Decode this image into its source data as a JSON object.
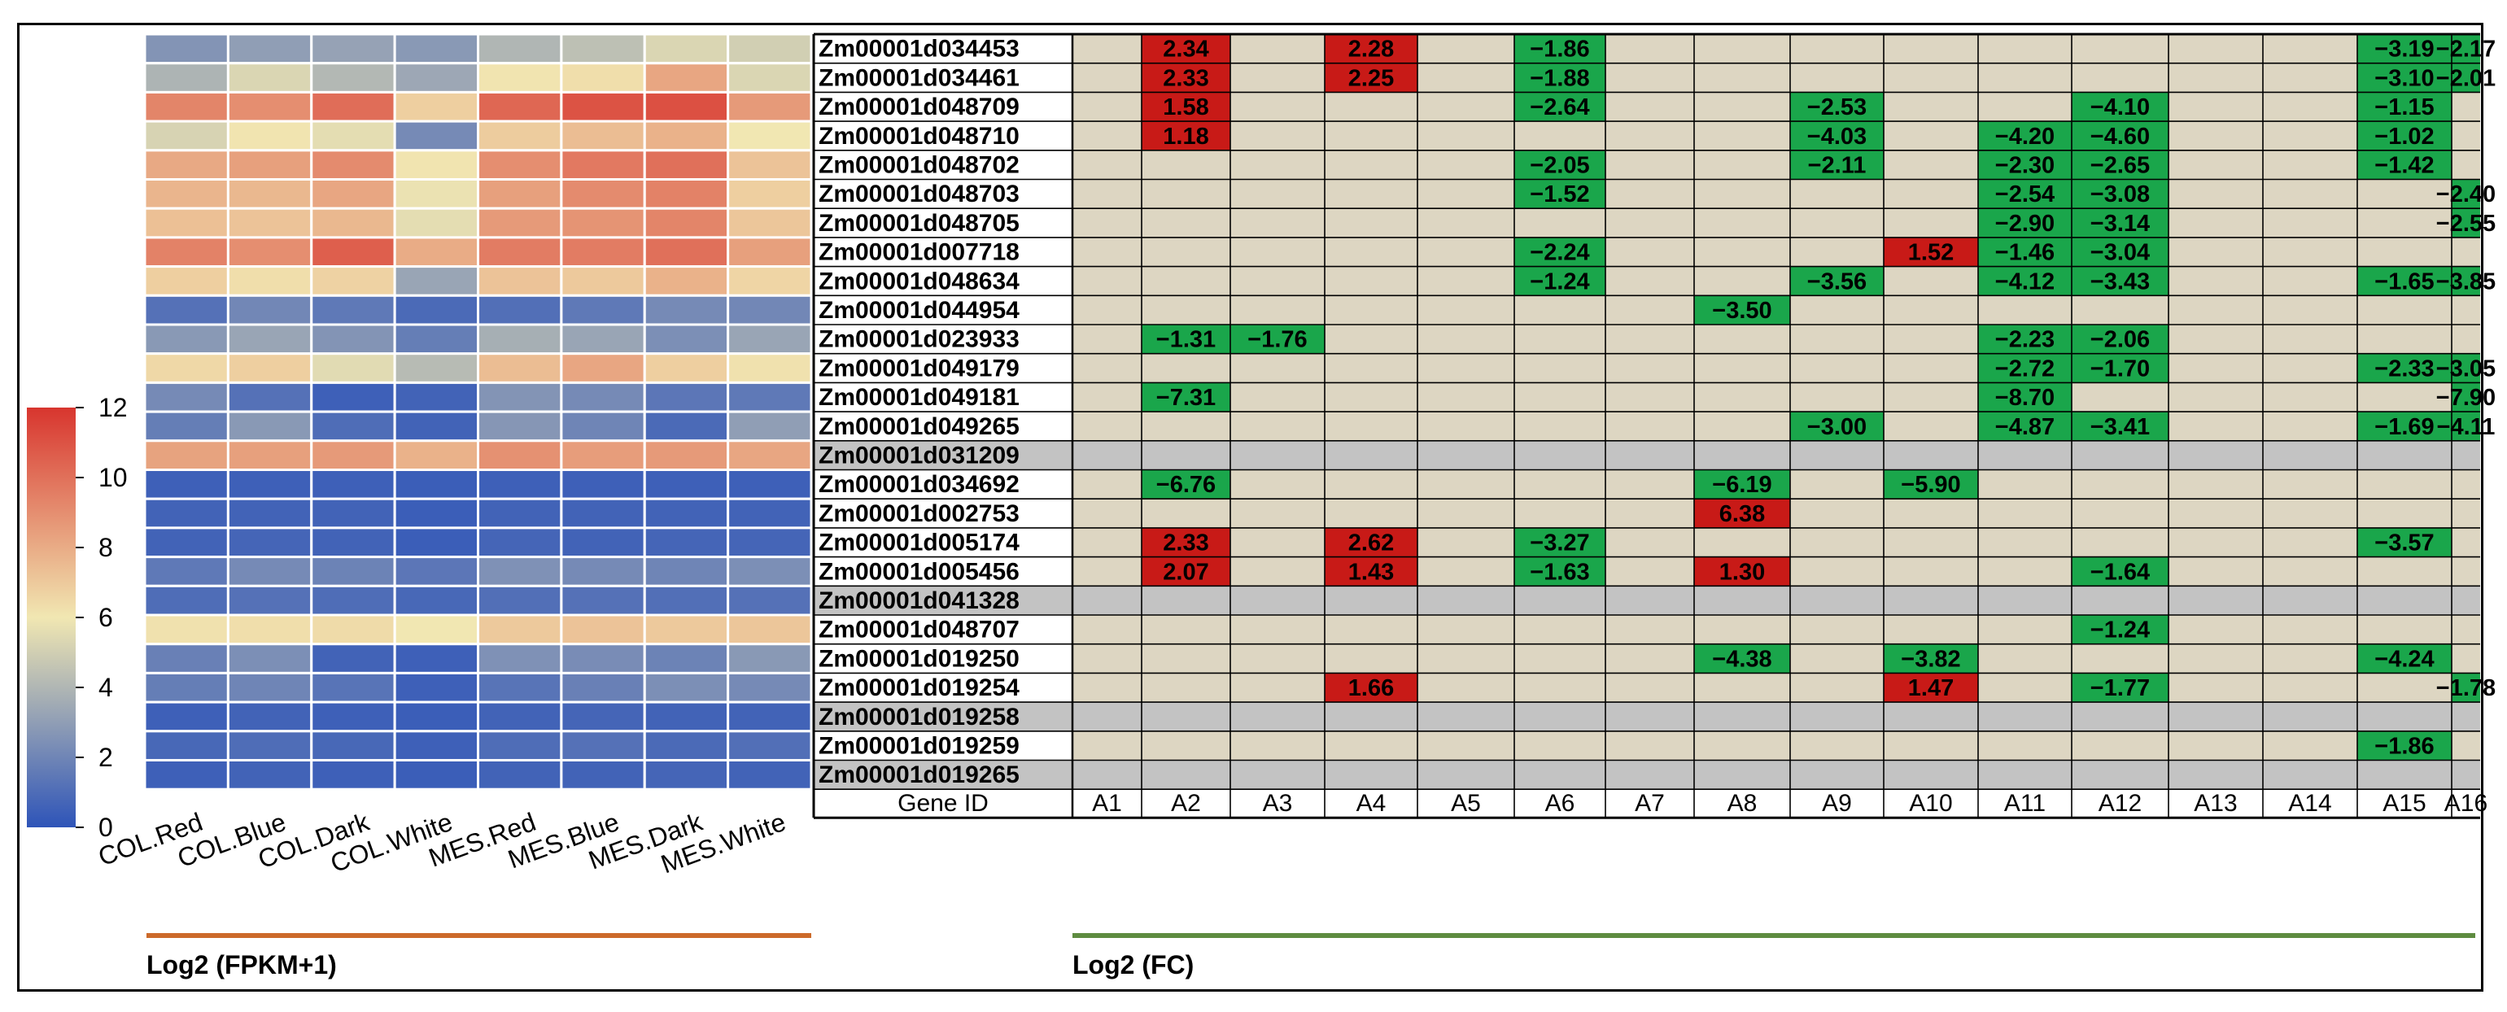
{
  "figure": {
    "heatmap": {
      "type": "heatmap",
      "title": "Log2 (FPKM+1)",
      "columns": [
        "COL.Red",
        "COL.Blue",
        "COL.Dark",
        "COL.White",
        "MES.Red",
        "MES.Blue",
        "MES.Dark",
        "MES.White"
      ],
      "colorbar": {
        "min": 0,
        "max": 12,
        "ticks": [
          "0",
          "2",
          "4",
          "6",
          "8",
          "10",
          "12"
        ]
      },
      "colors": {
        "low": "#2e54b8",
        "mid": "#f1e7b2",
        "high": "#d8352e"
      },
      "values": [
        [
          2.6,
          3.0,
          3.2,
          2.8,
          4.0,
          4.4,
          5.3,
          5.0
        ],
        [
          3.9,
          5.3,
          4.1,
          3.4,
          6.1,
          6.3,
          8.2,
          5.3
        ],
        [
          9.3,
          9.0,
          10.1,
          6.8,
          10.3,
          11.0,
          11.1,
          8.6
        ],
        [
          5.2,
          6.1,
          5.6,
          2.2,
          6.9,
          7.4,
          7.8,
          6.0
        ],
        [
          8.1,
          8.4,
          9.1,
          6.1,
          9.0,
          9.7,
          10.0,
          7.2
        ],
        [
          7.7,
          7.6,
          8.2,
          5.8,
          8.4,
          9.1,
          9.4,
          6.8
        ],
        [
          7.3,
          7.2,
          7.6,
          5.6,
          8.6,
          8.8,
          9.3,
          7.1
        ],
        [
          9.4,
          9.0,
          10.6,
          8.0,
          9.6,
          9.6,
          10.0,
          8.4
        ],
        [
          6.8,
          6.3,
          6.7,
          3.3,
          7.2,
          7.0,
          7.8,
          6.6
        ],
        [
          1.2,
          2.1,
          1.5,
          0.9,
          1.1,
          1.5,
          2.2,
          2.1
        ],
        [
          2.8,
          3.3,
          2.6,
          1.7,
          3.7,
          3.3,
          2.4,
          3.3
        ],
        [
          6.5,
          6.8,
          5.5,
          4.2,
          7.4,
          8.2,
          6.8,
          6.2
        ],
        [
          2.2,
          1.2,
          0.5,
          0.6,
          2.6,
          2.2,
          1.4,
          1.5
        ],
        [
          1.7,
          2.8,
          1.0,
          0.6,
          2.7,
          2.0,
          0.9,
          3.0
        ],
        [
          8.3,
          8.4,
          8.6,
          7.8,
          8.9,
          8.5,
          8.6,
          8.2
        ],
        [
          0.5,
          0.5,
          0.5,
          0.4,
          0.5,
          0.5,
          0.5,
          0.5
        ],
        [
          0.6,
          0.6,
          0.6,
          0.4,
          0.6,
          0.6,
          0.6,
          0.6
        ],
        [
          0.6,
          0.7,
          0.6,
          0.4,
          0.7,
          0.6,
          0.7,
          0.7
        ],
        [
          1.5,
          2.2,
          1.9,
          1.4,
          2.5,
          2.2,
          2.0,
          2.4
        ],
        [
          1.0,
          1.2,
          1.0,
          0.8,
          1.1,
          1.2,
          1.1,
          1.2
        ],
        [
          6.2,
          6.3,
          6.4,
          6.0,
          7.0,
          7.2,
          7.0,
          7.1
        ],
        [
          1.8,
          2.4,
          0.6,
          0.5,
          2.5,
          2.3,
          1.9,
          2.8
        ],
        [
          1.7,
          2.0,
          1.3,
          0.5,
          1.3,
          1.8,
          2.4,
          2.2
        ],
        [
          0.5,
          0.6,
          0.5,
          0.4,
          0.6,
          0.7,
          0.6,
          0.6
        ],
        [
          0.8,
          1.0,
          0.8,
          0.5,
          1.0,
          1.2,
          0.9,
          1.1
        ],
        [
          0.5,
          0.6,
          0.5,
          0.4,
          0.6,
          0.6,
          0.7,
          0.6
        ]
      ]
    },
    "fc_table": {
      "type": "table",
      "title": "Log2 (FC)",
      "gene_header": "Gene ID",
      "columns": [
        "A1",
        "A2",
        "A3",
        "A4",
        "A5",
        "A6",
        "A7",
        "A8",
        "A9",
        "A10",
        "A11",
        "A12",
        "A13",
        "A14",
        "A15",
        "A16"
      ],
      "colors": {
        "up": "#c81a17",
        "down": "#1aa64b",
        "empty": "#ddd6c2",
        "no_data": "#c3c3c3"
      },
      "rows": [
        {
          "gene": "Zm00001d034453",
          "no_data": false,
          "values": [
            "",
            "2.34",
            "",
            "2.28",
            "",
            "−1.86",
            "",
            "",
            "",
            "",
            "",
            "",
            "",
            "",
            "−3.19",
            "−2.17"
          ]
        },
        {
          "gene": "Zm00001d034461",
          "no_data": false,
          "values": [
            "",
            "2.33",
            "",
            "2.25",
            "",
            "−1.88",
            "",
            "",
            "",
            "",
            "",
            "",
            "",
            "",
            "−3.10",
            "−2.01"
          ]
        },
        {
          "gene": "Zm00001d048709",
          "no_data": false,
          "values": [
            "",
            "1.58",
            "",
            "",
            "",
            "−2.64",
            "",
            "",
            "−2.53",
            "",
            "",
            "−4.10",
            "",
            "",
            "−1.15",
            ""
          ]
        },
        {
          "gene": "Zm00001d048710",
          "no_data": false,
          "values": [
            "",
            "1.18",
            "",
            "",
            "",
            "",
            "",
            "",
            "−4.03",
            "",
            "−4.20",
            "−4.60",
            "",
            "",
            "−1.02",
            ""
          ]
        },
        {
          "gene": "Zm00001d048702",
          "no_data": false,
          "values": [
            "",
            "",
            "",
            "",
            "",
            "−2.05",
            "",
            "",
            "−2.11",
            "",
            "−2.30",
            "−2.65",
            "",
            "",
            "−1.42",
            ""
          ]
        },
        {
          "gene": "Zm00001d048703",
          "no_data": false,
          "values": [
            "",
            "",
            "",
            "",
            "",
            "−1.52",
            "",
            "",
            "",
            "",
            "−2.54",
            "−3.08",
            "",
            "",
            "",
            "−2.40"
          ]
        },
        {
          "gene": "Zm00001d048705",
          "no_data": false,
          "values": [
            "",
            "",
            "",
            "",
            "",
            "",
            "",
            "",
            "",
            "",
            "−2.90",
            "−3.14",
            "",
            "",
            "",
            "−2.55"
          ]
        },
        {
          "gene": "Zm00001d007718",
          "no_data": false,
          "values": [
            "",
            "",
            "",
            "",
            "",
            "−2.24",
            "",
            "",
            "",
            "1.52",
            "−1.46",
            "−3.04",
            "",
            "",
            "",
            ""
          ]
        },
        {
          "gene": "Zm00001d048634",
          "no_data": false,
          "values": [
            "",
            "",
            "",
            "",
            "",
            "−1.24",
            "",
            "",
            "−3.56",
            "",
            "−4.12",
            "−3.43",
            "",
            "",
            "−1.65",
            "−3.85"
          ]
        },
        {
          "gene": "Zm00001d044954",
          "no_data": false,
          "values": [
            "",
            "",
            "",
            "",
            "",
            "",
            "",
            "−3.50",
            "",
            "",
            "",
            "",
            "",
            "",
            "",
            ""
          ]
        },
        {
          "gene": "Zm00001d023933",
          "no_data": false,
          "values": [
            "",
            "−1.31",
            "−1.76",
            "",
            "",
            "",
            "",
            "",
            "",
            "",
            "−2.23",
            "−2.06",
            "",
            "",
            "",
            ""
          ]
        },
        {
          "gene": "Zm00001d049179",
          "no_data": false,
          "values": [
            "",
            "",
            "",
            "",
            "",
            "",
            "",
            "",
            "",
            "",
            "−2.72",
            "−1.70",
            "",
            "",
            "−2.33",
            "−3.05"
          ]
        },
        {
          "gene": "Zm00001d049181",
          "no_data": false,
          "values": [
            "",
            "−7.31",
            "",
            "",
            "",
            "",
            "",
            "",
            "",
            "",
            "−8.70",
            "",
            "",
            "",
            "",
            "−7.90"
          ]
        },
        {
          "gene": "Zm00001d049265",
          "no_data": false,
          "values": [
            "",
            "",
            "",
            "",
            "",
            "",
            "",
            "",
            "−3.00",
            "",
            "−4.87",
            "−3.41",
            "",
            "",
            "−1.69",
            "−4.11"
          ]
        },
        {
          "gene": "Zm00001d031209",
          "no_data": true,
          "values": [
            "",
            "",
            "",
            "",
            "",
            "",
            "",
            "",
            "",
            "",
            "",
            "",
            "",
            "",
            "",
            ""
          ]
        },
        {
          "gene": "Zm00001d034692",
          "no_data": false,
          "values": [
            "",
            "−6.76",
            "",
            "",
            "",
            "",
            "",
            "−6.19",
            "",
            "−5.90",
            "",
            "",
            "",
            "",
            "",
            ""
          ]
        },
        {
          "gene": "Zm00001d002753",
          "no_data": false,
          "values": [
            "",
            "",
            "",
            "",
            "",
            "",
            "",
            "6.38",
            "",
            "",
            "",
            "",
            "",
            "",
            "",
            ""
          ]
        },
        {
          "gene": "Zm00001d005174",
          "no_data": false,
          "values": [
            "",
            "2.33",
            "",
            "2.62",
            "",
            "−3.27",
            "",
            "",
            "",
            "",
            "",
            "",
            "",
            "",
            "−3.57",
            ""
          ]
        },
        {
          "gene": "Zm00001d005456",
          "no_data": false,
          "values": [
            "",
            "2.07",
            "",
            "1.43",
            "",
            "−1.63",
            "",
            "1.30",
            "",
            "",
            "",
            "−1.64",
            "",
            "",
            "",
            ""
          ]
        },
        {
          "gene": "Zm00001d041328",
          "no_data": true,
          "values": [
            "",
            "",
            "",
            "",
            "",
            "",
            "",
            "",
            "",
            "",
            "",
            "",
            "",
            "",
            "",
            ""
          ]
        },
        {
          "gene": "Zm00001d048707",
          "no_data": false,
          "values": [
            "",
            "",
            "",
            "",
            "",
            "",
            "",
            "",
            "",
            "",
            "",
            "−1.24",
            "",
            "",
            "",
            ""
          ]
        },
        {
          "gene": "Zm00001d019250",
          "no_data": false,
          "values": [
            "",
            "",
            "",
            "",
            "",
            "",
            "",
            "−4.38",
            "",
            "−3.82",
            "",
            "",
            "",
            "",
            "−4.24",
            ""
          ]
        },
        {
          "gene": "Zm00001d019254",
          "no_data": false,
          "values": [
            "",
            "",
            "",
            "1.66",
            "",
            "",
            "",
            "",
            "",
            "1.47",
            "",
            "−1.77",
            "",
            "",
            "",
            "−1.78"
          ]
        },
        {
          "gene": "Zm00001d019258",
          "no_data": true,
          "values": [
            "",
            "",
            "",
            "",
            "",
            "",
            "",
            "",
            "",
            "",
            "",
            "",
            "",
            "",
            "",
            ""
          ]
        },
        {
          "gene": "Zm00001d019259",
          "no_data": false,
          "values": [
            "",
            "",
            "",
            "",
            "",
            "",
            "",
            "",
            "",
            "",
            "",
            "",
            "",
            "",
            "−1.86",
            ""
          ]
        },
        {
          "gene": "Zm00001d019265",
          "no_data": true,
          "values": [
            "",
            "",
            "",
            "",
            "",
            "",
            "",
            "",
            "",
            "",
            "",
            "",
            "",
            "",
            "",
            ""
          ]
        }
      ]
    },
    "underline_colors": {
      "left": "#cc6a2a",
      "right": "#5e8c40"
    }
  }
}
